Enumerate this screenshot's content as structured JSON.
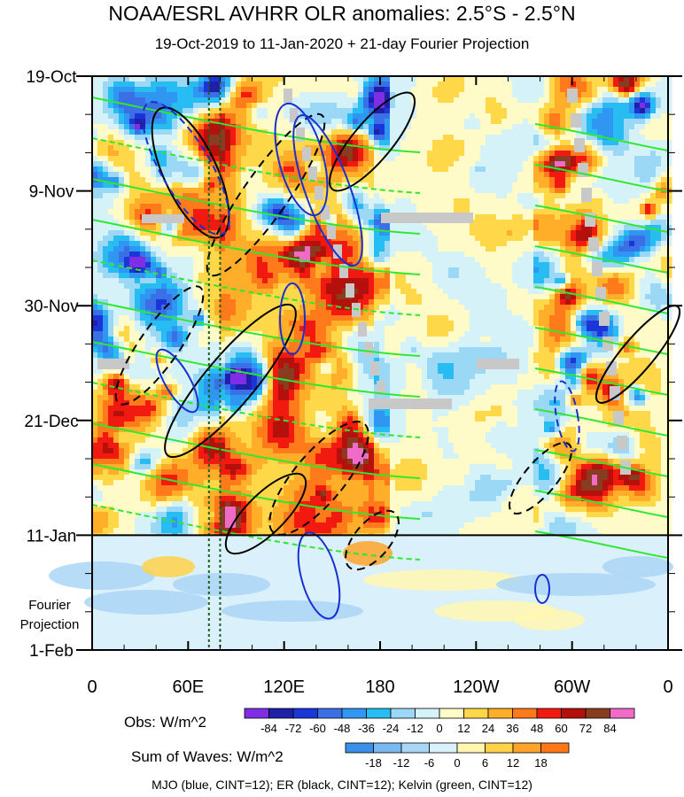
{
  "title": "NOAA/ESRL AVHRR OLR anomalies: 2.5°S - 2.5°N",
  "subtitle": "19-Oct-2019 to 11-Jan-2020 + 21-day Fourier Projection",
  "chart_data": {
    "type": "heatmap",
    "description_axes": {
      "x_tick_labels": [
        "0",
        "60E",
        "120E",
        "180",
        "120W",
        "60W",
        "0"
      ],
      "x_tick_longitudes_deg_east": [
        0,
        60,
        120,
        180,
        240,
        300,
        360
      ],
      "y_tick_labels": [
        "19-Oct",
        "9-Nov",
        "30-Nov",
        "21-Dec",
        "11-Jan",
        "1-Feb"
      ],
      "y_range": [
        "2019-10-19",
        "2020-02-01"
      ],
      "projection_start": "2020-01-11",
      "projection_label": "Fourier\nProjection"
    },
    "obs_colorbar": {
      "label": "Obs: W/m^2",
      "levels": [
        "-84",
        "-72",
        "-60",
        "-48",
        "-36",
        "-24",
        "-12",
        "0",
        "12",
        "24",
        "36",
        "48",
        "60",
        "72",
        "84"
      ],
      "colors": [
        "#7f2ee6",
        "#1f1fa8",
        "#1a35d8",
        "#3a6fe6",
        "#2f96f2",
        "#28bdf2",
        "#9ad8f6",
        "#d6f2f9",
        "#fffbc8",
        "#ffd84a",
        "#ffae2a",
        "#ff7a1a",
        "#f21a10",
        "#b4100c",
        "#8a3c20",
        "#f06bc8"
      ]
    },
    "waves_colorbar": {
      "label": "Sum of Waves: W/m^2",
      "levels": [
        "-18",
        "-12",
        "-6",
        "0",
        "6",
        "12",
        "18"
      ],
      "colors": [
        "#3a8fe6",
        "#7ab8f0",
        "#aad6f6",
        "#daf0fb",
        "#fff7b0",
        "#ffd24a",
        "#ffa32a",
        "#ff7818"
      ]
    },
    "contours": [
      {
        "name": "MJO",
        "color": "#1a2fd0",
        "cint": 12
      },
      {
        "name": "ER",
        "color": "#000000",
        "cint": 12
      },
      {
        "name": "Kelvin",
        "color": "#2ee82e",
        "cint": 12
      }
    ],
    "reference_lines_longitude": [
      73,
      80
    ]
  },
  "footer": "MJO (blue, CINT=12); ER (black, CINT=12); Kelvin (green, CINT=12)"
}
